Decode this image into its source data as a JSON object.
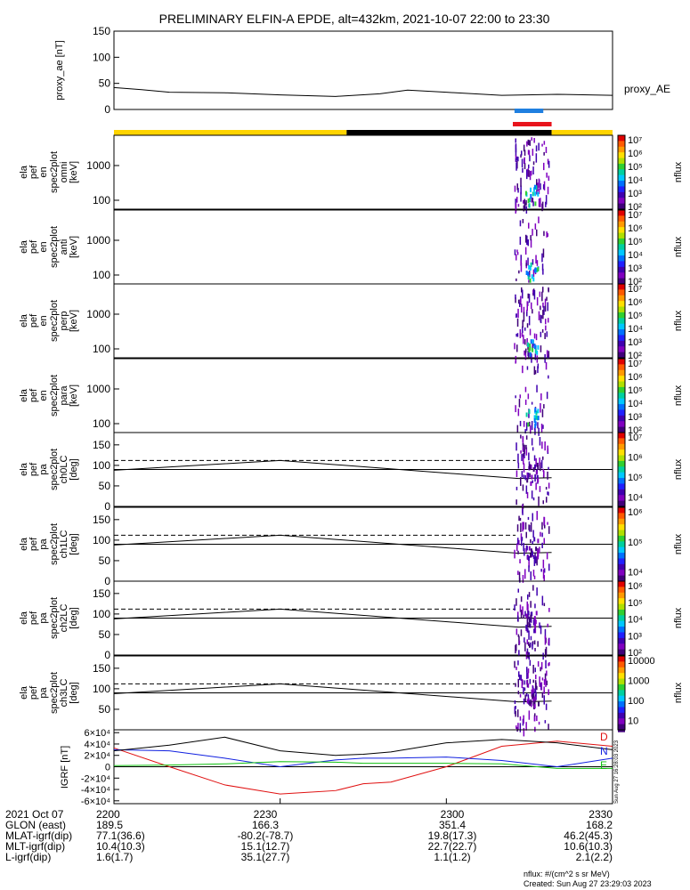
{
  "title": "PRELIMINARY ELFIN-A EPDE, alt=432km, 2021-10-07 22:00 to 23:30",
  "footer": {
    "units": "nflux: #/(cm^2 s sr MeV)",
    "created": "Created: Sun Aug 27 23:29:03 2023",
    "side_stamp": "Sun Aug 27 16:28:03 2023"
  },
  "bottom_table": {
    "headers": [
      "2021 Oct 07",
      "GLON (east)",
      "MLAT-igrf(dip)",
      "MLT-igrf(dip)",
      "L-igrf(dip)"
    ],
    "columns": [
      [
        "2200",
        "189.5",
        "77.1(36.6)",
        "10.4(10.3)",
        "1.6(1.7)"
      ],
      [
        "2230",
        "166.3",
        "-80.2(-78.7)",
        "15.1(12.7)",
        "35.1(27.7)"
      ],
      [
        "2300",
        "351.4",
        "19.8(17.3)",
        "22.7(22.7)",
        "1.1(1.2)"
      ],
      [
        "2330",
        "168.2",
        "46.2(45.3)",
        "10.6(10.3)",
        "2.1(2.2)"
      ]
    ]
  },
  "colors": {
    "yellow": "#ffd400",
    "black": "#000000",
    "blue_bar": "#1f7fe0",
    "red_bar": "#e8141c",
    "igrf_d": "#e01010",
    "igrf_n": "#1020e0",
    "igrf_e": "#10c010"
  },
  "chart_data": [
    {
      "type": "line",
      "id": "proxy_ae",
      "ylabel": "proxy_ae [nT]",
      "legend": "proxy_AE",
      "ylim": [
        0,
        150
      ],
      "yticks": [
        "0",
        "50",
        "100",
        "150"
      ],
      "x": [
        0,
        5,
        10,
        20,
        30,
        40,
        48,
        53,
        60,
        70,
        80,
        90
      ],
      "values": [
        42,
        38,
        33,
        32,
        28,
        25,
        30,
        37,
        33,
        27,
        29,
        27
      ]
    },
    {
      "type": "bar",
      "id": "orbit_bars",
      "x_segments": [
        {
          "color": "yellow",
          "from": 0,
          "to": 42
        },
        {
          "color": "black",
          "from": 42,
          "to": 79
        },
        {
          "color": "yellow",
          "from": 79,
          "to": 90
        }
      ],
      "marks": [
        {
          "color": "blue_bar",
          "from": 72.3,
          "to": 77.5
        },
        {
          "color": "red_bar",
          "from": 72.0,
          "to": 79.0
        }
      ]
    },
    {
      "type": "heatmap",
      "id": "omni",
      "ylabel": [
        "ela",
        "pef",
        "en",
        "spec2plot",
        "omni",
        "[keV]"
      ],
      "yticks": [
        "100",
        "1000"
      ],
      "cbar": [
        "10⁷",
        "10⁶",
        "10⁵",
        "10⁴",
        "10³",
        "10²"
      ],
      "cbar_label": "nflux"
    },
    {
      "type": "heatmap",
      "id": "anti",
      "ylabel": [
        "ela",
        "pef",
        "en",
        "spec2plot",
        "anti",
        "[keV]"
      ],
      "yticks": [
        "100",
        "1000"
      ],
      "cbar": [
        "10⁷",
        "10⁶",
        "10⁵",
        "10⁴",
        "10³",
        "10²"
      ],
      "cbar_label": "nflux"
    },
    {
      "type": "heatmap",
      "id": "perp",
      "ylabel": [
        "ela",
        "pef",
        "en",
        "spec2plot",
        "perp",
        "[keV]"
      ],
      "yticks": [
        "100",
        "1000"
      ],
      "cbar": [
        "10⁷",
        "10⁶",
        "10⁵",
        "10⁴",
        "10³",
        "10²"
      ],
      "cbar_label": "nflux"
    },
    {
      "type": "heatmap",
      "id": "para",
      "ylabel": [
        "ela",
        "pef",
        "en",
        "spec2plot",
        "para",
        "[keV]"
      ],
      "yticks": [
        "100",
        "1000"
      ],
      "cbar": [
        "10⁷",
        "10⁶",
        "10⁵",
        "10⁴",
        "10³",
        "10²"
      ],
      "cbar_label": "nflux"
    },
    {
      "type": "heatmap",
      "id": "ch0LC",
      "ylabel": [
        "ela",
        "pef",
        "pa",
        "spec2plot",
        "ch0LC",
        "[deg]"
      ],
      "ylim": [
        0,
        180
      ],
      "yticks": [
        "0",
        "50",
        "100",
        "150"
      ],
      "cbar": [
        "10⁷",
        "10⁶",
        "10⁵",
        "10⁴"
      ],
      "cbar_label": "nflux",
      "lc_solid": [
        88,
        112,
        68
      ],
      "lc_dashed": [
        112,
        112
      ]
    },
    {
      "type": "heatmap",
      "id": "ch1LC",
      "ylabel": [
        "ela",
        "pef",
        "pa",
        "spec2plot",
        "ch1LC",
        "[deg]"
      ],
      "ylim": [
        0,
        180
      ],
      "yticks": [
        "0",
        "50",
        "100",
        "150"
      ],
      "cbar": [
        "10⁶",
        "10⁵",
        "10⁴"
      ],
      "cbar_label": "nflux",
      "lc_solid": [
        88,
        112,
        68
      ],
      "lc_dashed": [
        112,
        112
      ]
    },
    {
      "type": "heatmap",
      "id": "ch2LC",
      "ylabel": [
        "ela",
        "pef",
        "pa",
        "spec2plot",
        "ch2LC",
        "[deg]"
      ],
      "ylim": [
        0,
        180
      ],
      "yticks": [
        "0",
        "50",
        "100",
        "150"
      ],
      "cbar": [
        "10⁶",
        "10⁵",
        "10⁴",
        "10³",
        "10²"
      ],
      "cbar_label": "nflux",
      "lc_solid": [
        88,
        112,
        68
      ],
      "lc_dashed": [
        112,
        112
      ]
    },
    {
      "type": "heatmap",
      "id": "ch3LC",
      "ylabel": [
        "ela",
        "pef",
        "pa",
        "spec2plot",
        "ch3LC",
        "[deg]"
      ],
      "ylim": [
        0,
        180
      ],
      "yticks": [
        "50",
        "100",
        "150"
      ],
      "cbar": [
        "10000",
        "1000",
        "100",
        "10"
      ],
      "cbar_label": "nflux",
      "lc_solid": [
        88,
        112,
        68
      ],
      "lc_dashed": [
        112,
        112
      ]
    },
    {
      "type": "line",
      "id": "igrf",
      "ylabel": "IGRF [nT]",
      "ylim": [
        -65000,
        65000
      ],
      "yticks": [
        "-6×10⁴",
        "-4×10⁴",
        "-2×10⁴",
        "0",
        "2×10⁴",
        "4×10⁴",
        "6×10⁴"
      ],
      "x": [
        0,
        10,
        20,
        30,
        40,
        45,
        50,
        60,
        70,
        80,
        90
      ],
      "series": [
        {
          "name": "D",
          "color": "igrf_d",
          "values": [
            33000,
            0,
            -32000,
            -48000,
            -42000,
            -30000,
            -27000,
            0,
            36000,
            45000,
            36000
          ]
        },
        {
          "name": "N",
          "color": "igrf_n",
          "values": [
            30000,
            28000,
            15000,
            0,
            12000,
            15000,
            15000,
            17000,
            11000,
            0,
            15000
          ]
        },
        {
          "name": "E",
          "color": "igrf_e",
          "values": [
            2000,
            3000,
            5000,
            9000,
            8000,
            6000,
            6000,
            6000,
            5000,
            -3000,
            -3000
          ]
        },
        {
          "name": "",
          "color": "black",
          "values": [
            28000,
            38000,
            52000,
            28000,
            20000,
            22000,
            26000,
            42000,
            48000,
            42000,
            30000
          ]
        }
      ]
    }
  ]
}
